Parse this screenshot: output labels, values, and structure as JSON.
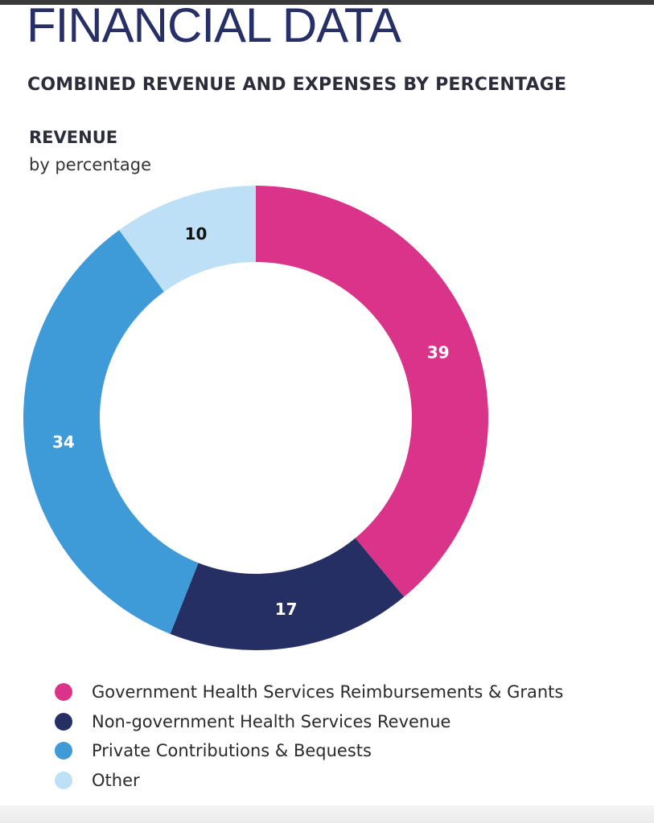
{
  "header": {
    "title": "FINANCIAL DATA",
    "subtitle": "COMBINED REVENUE AND EXPENSES BY PERCENTAGE"
  },
  "section": {
    "heading": "REVENUE",
    "subheading": "by percentage"
  },
  "chart_data": {
    "type": "pie",
    "donut": true,
    "categories": [
      "Government Health Services Reimbursements & Grants",
      "Non-government Health Services Revenue",
      "Private Contributions & Bequests",
      "Other"
    ],
    "values": [
      39,
      17,
      34,
      10
    ],
    "colors": [
      "#d9338a",
      "#262f63",
      "#3f9ad8",
      "#bde0f6"
    ],
    "label_colors": [
      "#ffffff",
      "#ffffff",
      "#ffffff",
      "#111111"
    ],
    "start_angle": "12 o'clock",
    "direction": "clockwise",
    "legend_position": "bottom-left"
  }
}
